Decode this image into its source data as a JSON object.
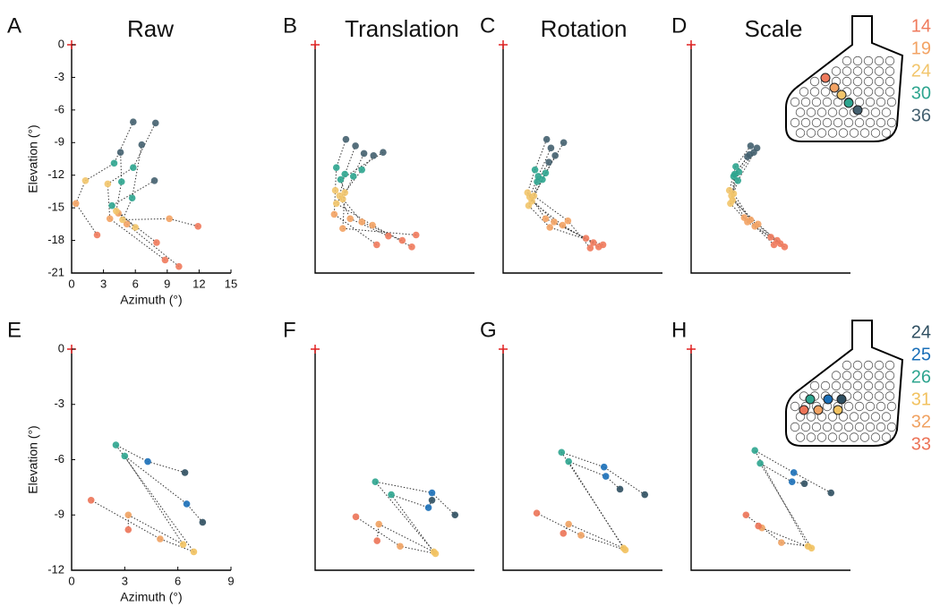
{
  "chart_data": [
    {
      "type": "scatter",
      "label": "A",
      "title": "Raw",
      "xlabel": "Azimuth (°)",
      "ylabel": "Elevation (°)",
      "xlim": [
        0,
        15
      ],
      "ylim": [
        -21,
        0
      ],
      "xticks": [
        0,
        3,
        6,
        9,
        12,
        15
      ],
      "yticks": [
        0,
        -3,
        -6,
        -9,
        -12,
        -15,
        -18,
        -21
      ],
      "series": [
        {
          "name": "14",
          "color": "#ef7a5c",
          "x": [
            2.4,
            8.8,
            10.1,
            11.9,
            8.0
          ],
          "values": [
            -17.5,
            -19.8,
            -20.4,
            -16.7,
            -18.2
          ]
        },
        {
          "name": "19",
          "color": "#f3a364",
          "x": [
            0.4,
            3.6,
            5.2,
            9.2,
            4.4
          ],
          "values": [
            -14.6,
            -16.0,
            -16.5,
            -16.0,
            -15.5
          ]
        },
        {
          "name": "24",
          "color": "#f2c56b",
          "x": [
            1.3,
            3.4,
            4.2,
            4.8,
            6.0
          ],
          "values": [
            -12.5,
            -12.8,
            -15.3,
            -16.1,
            -16.8
          ]
        },
        {
          "name": "30",
          "color": "#2ea58f",
          "x": [
            4.0,
            5.8,
            4.7,
            5.7,
            3.8
          ],
          "values": [
            -10.9,
            -11.3,
            -12.6,
            -14.1,
            -14.8
          ]
        },
        {
          "name": "36",
          "color": "#44606f",
          "x": [
            5.8,
            7.9,
            4.6,
            6.6,
            7.8
          ],
          "values": [
            -7.1,
            -7.2,
            -9.9,
            -9.2,
            -12.5
          ]
        }
      ]
    },
    {
      "type": "scatter",
      "label": "B",
      "title": "Translation",
      "xlim": [
        0,
        15
      ],
      "ylim": [
        -21,
        0
      ],
      "series": [
        {
          "name": "14",
          "color": "#ef7a5c",
          "x": [
            5.8,
            6.9,
            8.2,
            9.1,
            9.5
          ],
          "values": [
            -18.4,
            -17.6,
            -18.0,
            -18.6,
            -17.5
          ]
        },
        {
          "name": "19",
          "color": "#f3a364",
          "x": [
            1.8,
            3.3,
            4.4,
            5.4,
            2.6
          ],
          "values": [
            -15.6,
            -16.0,
            -16.3,
            -16.6,
            -16.9
          ]
        },
        {
          "name": "24",
          "color": "#f2c56b",
          "x": [
            1.9,
            2.3,
            2.6,
            2.0,
            2.8
          ],
          "values": [
            -13.4,
            -13.9,
            -14.2,
            -14.6,
            -13.6
          ]
        },
        {
          "name": "30",
          "color": "#2ea58f",
          "x": [
            2.0,
            2.8,
            3.6,
            4.4,
            2.4
          ],
          "values": [
            -11.3,
            -11.9,
            -12.1,
            -11.5,
            -12.4
          ]
        },
        {
          "name": "36",
          "color": "#44606f",
          "x": [
            2.9,
            3.8,
            4.6,
            5.5,
            6.4
          ],
          "values": [
            -8.7,
            -9.3,
            -10.0,
            -10.2,
            -9.9
          ]
        }
      ]
    },
    {
      "type": "scatter",
      "label": "C",
      "title": "Rotation",
      "xlim": [
        0,
        15
      ],
      "ylim": [
        -21,
        0
      ],
      "series": [
        {
          "name": "14",
          "color": "#ef7a5c",
          "x": [
            7.8,
            8.5,
            9.0,
            9.4,
            8.2
          ],
          "values": [
            -17.8,
            -18.2,
            -18.6,
            -18.4,
            -18.7
          ]
        },
        {
          "name": "19",
          "color": "#f3a364",
          "x": [
            4.0,
            4.8,
            5.6,
            4.4,
            6.1
          ],
          "values": [
            -16.0,
            -16.3,
            -16.6,
            -16.8,
            -16.2
          ]
        },
        {
          "name": "24",
          "color": "#f2c56b",
          "x": [
            2.3,
            2.5,
            2.7,
            2.4,
            2.9
          ],
          "values": [
            -13.6,
            -14.0,
            -14.4,
            -14.8,
            -13.9
          ]
        },
        {
          "name": "30",
          "color": "#2ea58f",
          "x": [
            3.0,
            3.3,
            3.7,
            4.0,
            3.2
          ],
          "values": [
            -11.5,
            -12.1,
            -12.4,
            -11.8,
            -12.6
          ]
        },
        {
          "name": "36",
          "color": "#44606f",
          "x": [
            4.1,
            4.5,
            4.9,
            5.7,
            4.3
          ],
          "values": [
            -8.7,
            -9.5,
            -10.2,
            -9.0,
            -10.8
          ]
        }
      ]
    },
    {
      "type": "scatter",
      "label": "D",
      "title": "Scale",
      "xlim": [
        0,
        15
      ],
      "ylim": [
        -21,
        0
      ],
      "series": [
        {
          "name": "14",
          "color": "#ef7a5c",
          "x": [
            7.5,
            8.1,
            8.4,
            8.8,
            7.8
          ],
          "values": [
            -17.7,
            -18.0,
            -18.3,
            -18.6,
            -18.4
          ]
        },
        {
          "name": "19",
          "color": "#f3a364",
          "x": [
            5.0,
            5.6,
            6.3,
            5.3,
            6.0
          ],
          "values": [
            -15.9,
            -16.1,
            -16.5,
            -16.3,
            -16.7
          ]
        },
        {
          "name": "24",
          "color": "#f2c56b",
          "x": [
            3.6,
            3.8,
            3.9,
            3.7,
            4.0
          ],
          "values": [
            -13.4,
            -13.9,
            -14.3,
            -14.6,
            -13.7
          ]
        },
        {
          "name": "30",
          "color": "#2ea58f",
          "x": [
            4.2,
            4.5,
            4.0,
            4.4,
            4.1
          ],
          "values": [
            -11.2,
            -11.7,
            -12.1,
            -12.5,
            -11.9
          ]
        },
        {
          "name": "36",
          "color": "#44606f",
          "x": [
            5.6,
            5.9,
            5.3,
            6.2,
            5.5
          ],
          "values": [
            -9.3,
            -9.9,
            -10.3,
            -9.5,
            -10.1
          ]
        }
      ]
    },
    {
      "type": "scatter",
      "label": "E",
      "xlabel": "Azimuth (°)",
      "ylabel": "Elevation (°)",
      "xlim": [
        0,
        9
      ],
      "ylim": [
        -12,
        0
      ],
      "xticks": [
        0,
        3,
        6,
        9
      ],
      "yticks": [
        0,
        -3,
        -6,
        -9,
        -12
      ],
      "series": [
        {
          "name": "24",
          "color": "#2f4f61",
          "x": [
            6.4,
            7.4
          ],
          "values": [
            -6.7,
            -9.4
          ]
        },
        {
          "name": "25",
          "color": "#1a6fb8",
          "x": [
            4.3,
            6.5
          ],
          "values": [
            -6.1,
            -8.4
          ]
        },
        {
          "name": "26",
          "color": "#2ea58f",
          "x": [
            2.5,
            3.0
          ],
          "values": [
            -5.2,
            -5.8
          ]
        },
        {
          "name": "31",
          "color": "#f2c260",
          "x": [
            6.9,
            6.3
          ],
          "values": [
            -11.0,
            -10.6
          ]
        },
        {
          "name": "32",
          "color": "#f0a262",
          "x": [
            5.0,
            3.2
          ],
          "values": [
            -10.3,
            -9.0
          ]
        },
        {
          "name": "33",
          "color": "#ec7357",
          "x": [
            1.1,
            3.2
          ],
          "values": [
            -8.2,
            -9.8
          ]
        }
      ]
    },
    {
      "type": "scatter",
      "label": "F",
      "xlim": [
        0,
        9
      ],
      "ylim": [
        -12,
        0
      ],
      "series": [
        {
          "name": "24",
          "color": "#2f4f61",
          "x": [
            7.9,
            6.6
          ],
          "values": [
            -9.0,
            -8.2
          ]
        },
        {
          "name": "25",
          "color": "#1a6fb8",
          "x": [
            6.6,
            6.4
          ],
          "values": [
            -7.8,
            -8.6
          ]
        },
        {
          "name": "26",
          "color": "#2ea58f",
          "x": [
            3.4,
            4.3
          ],
          "values": [
            -7.2,
            -7.9
          ]
        },
        {
          "name": "31",
          "color": "#f2c260",
          "x": [
            6.8,
            6.7
          ],
          "values": [
            -11.1,
            -11.0
          ]
        },
        {
          "name": "32",
          "color": "#f0a262",
          "x": [
            4.8,
            3.6
          ],
          "values": [
            -10.7,
            -9.5
          ]
        },
        {
          "name": "33",
          "color": "#ec7357",
          "x": [
            2.3,
            3.5
          ],
          "values": [
            -9.1,
            -10.4
          ]
        }
      ]
    },
    {
      "type": "scatter",
      "label": "G",
      "xlim": [
        0,
        9
      ],
      "ylim": [
        -12,
        0
      ],
      "series": [
        {
          "name": "24",
          "color": "#2f4f61",
          "x": [
            8.0,
            6.6
          ],
          "values": [
            -7.9,
            -7.6
          ]
        },
        {
          "name": "25",
          "color": "#1a6fb8",
          "x": [
            5.7,
            5.8
          ],
          "values": [
            -6.4,
            -6.9
          ]
        },
        {
          "name": "26",
          "color": "#2ea58f",
          "x": [
            3.3,
            3.7
          ],
          "values": [
            -5.6,
            -6.1
          ]
        },
        {
          "name": "31",
          "color": "#f2c260",
          "x": [
            6.9,
            6.8
          ],
          "values": [
            -10.9,
            -10.8
          ]
        },
        {
          "name": "32",
          "color": "#f0a262",
          "x": [
            4.4,
            3.7
          ],
          "values": [
            -10.1,
            -9.5
          ]
        },
        {
          "name": "33",
          "color": "#ec7357",
          "x": [
            1.9,
            3.4
          ],
          "values": [
            -8.9,
            -10.0
          ]
        }
      ]
    },
    {
      "type": "scatter",
      "label": "H",
      "xlim": [
        0,
        9
      ],
      "ylim": [
        -12,
        0
      ],
      "series": [
        {
          "name": "24",
          "color": "#2f4f61",
          "x": [
            7.9,
            6.4
          ],
          "values": [
            -7.8,
            -7.3
          ]
        },
        {
          "name": "25",
          "color": "#1a6fb8",
          "x": [
            5.8,
            5.7
          ],
          "values": [
            -6.7,
            -7.2
          ]
        },
        {
          "name": "26",
          "color": "#2ea58f",
          "x": [
            3.6,
            3.9
          ],
          "values": [
            -5.5,
            -6.2
          ]
        },
        {
          "name": "31",
          "color": "#f2c260",
          "x": [
            6.6,
            6.8
          ],
          "values": [
            -10.7,
            -10.8
          ]
        },
        {
          "name": "32",
          "color": "#f0a262",
          "x": [
            5.1,
            4.0
          ],
          "values": [
            -10.5,
            -9.7
          ]
        },
        {
          "name": "33",
          "color": "#ec7357",
          "x": [
            3.1,
            3.8
          ],
          "values": [
            -9.0,
            -9.6
          ]
        }
      ]
    }
  ]
}
